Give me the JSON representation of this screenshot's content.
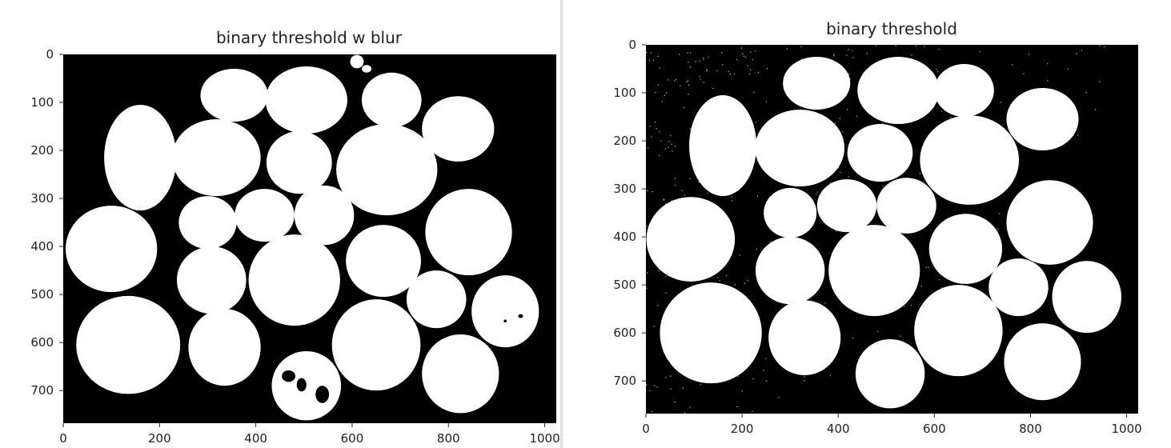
{
  "window": {
    "divider": true
  },
  "chart_data": [
    {
      "type": "image",
      "title": "binary threshold w blur",
      "xlim": [
        0,
        1024
      ],
      "ylim": [
        768,
        0
      ],
      "xticks": [
        0,
        200,
        400,
        600,
        800,
        1000
      ],
      "yticks": [
        0,
        100,
        200,
        300,
        400,
        500,
        600,
        700
      ],
      "colors": {
        "background": "#000000",
        "foreground": "#ffffff"
      },
      "blobs": [
        {
          "cx": 355,
          "cy": 85,
          "rx": 70,
          "ry": 55
        },
        {
          "cx": 505,
          "cy": 95,
          "rx": 85,
          "ry": 70
        },
        {
          "cx": 682,
          "cy": 95,
          "rx": 62,
          "ry": 57
        },
        {
          "cx": 820,
          "cy": 155,
          "rx": 75,
          "ry": 68
        },
        {
          "cx": 160,
          "cy": 215,
          "rx": 75,
          "ry": 110
        },
        {
          "cx": 318,
          "cy": 215,
          "rx": 92,
          "ry": 80
        },
        {
          "cx": 490,
          "cy": 225,
          "rx": 68,
          "ry": 65
        },
        {
          "cx": 672,
          "cy": 240,
          "rx": 105,
          "ry": 95
        },
        {
          "cx": 300,
          "cy": 350,
          "rx": 60,
          "ry": 55
        },
        {
          "cx": 418,
          "cy": 335,
          "rx": 62,
          "ry": 55
        },
        {
          "cx": 542,
          "cy": 335,
          "rx": 62,
          "ry": 62
        },
        {
          "cx": 842,
          "cy": 370,
          "rx": 90,
          "ry": 90
        },
        {
          "cx": 100,
          "cy": 405,
          "rx": 95,
          "ry": 90
        },
        {
          "cx": 308,
          "cy": 470,
          "rx": 72,
          "ry": 70
        },
        {
          "cx": 480,
          "cy": 470,
          "rx": 95,
          "ry": 95
        },
        {
          "cx": 665,
          "cy": 430,
          "rx": 78,
          "ry": 75
        },
        {
          "cx": 775,
          "cy": 510,
          "rx": 62,
          "ry": 60
        },
        {
          "cx": 918,
          "cy": 535,
          "rx": 70,
          "ry": 75
        },
        {
          "cx": 135,
          "cy": 605,
          "rx": 108,
          "ry": 102
        },
        {
          "cx": 335,
          "cy": 610,
          "rx": 75,
          "ry": 80
        },
        {
          "cx": 650,
          "cy": 605,
          "rx": 92,
          "ry": 95
        },
        {
          "cx": 825,
          "cy": 665,
          "rx": 80,
          "ry": 82
        },
        {
          "cx": 505,
          "cy": 690,
          "rx": 72,
          "ry": 72
        }
      ],
      "holes": [
        {
          "cx": 468,
          "cy": 670,
          "rx": 14,
          "ry": 12
        },
        {
          "cx": 495,
          "cy": 688,
          "rx": 10,
          "ry": 14
        },
        {
          "cx": 538,
          "cy": 708,
          "rx": 14,
          "ry": 18
        },
        {
          "cx": 950,
          "cy": 545,
          "rx": 5,
          "ry": 4
        },
        {
          "cx": 918,
          "cy": 555,
          "rx": 3,
          "ry": 3
        }
      ],
      "specks": [
        {
          "cx": 610,
          "cy": 15,
          "rx": 14,
          "ry": 14
        },
        {
          "cx": 630,
          "cy": 30,
          "rx": 10,
          "ry": 8
        }
      ]
    },
    {
      "type": "image",
      "title": "binary threshold",
      "xlim": [
        0,
        1024
      ],
      "ylim": [
        768,
        0
      ],
      "xticks": [
        0,
        200,
        400,
        600,
        800,
        1000
      ],
      "yticks": [
        0,
        100,
        200,
        300,
        400,
        500,
        600,
        700
      ],
      "colors": {
        "background": "#000000",
        "foreground": "#ffffff"
      },
      "blobs": [
        {
          "cx": 355,
          "cy": 80,
          "rx": 70,
          "ry": 55
        },
        {
          "cx": 525,
          "cy": 95,
          "rx": 85,
          "ry": 70
        },
        {
          "cx": 662,
          "cy": 95,
          "rx": 62,
          "ry": 55
        },
        {
          "cx": 825,
          "cy": 155,
          "rx": 75,
          "ry": 65
        },
        {
          "cx": 160,
          "cy": 210,
          "rx": 70,
          "ry": 105
        },
        {
          "cx": 320,
          "cy": 215,
          "rx": 93,
          "ry": 80
        },
        {
          "cx": 487,
          "cy": 225,
          "rx": 68,
          "ry": 60
        },
        {
          "cx": 673,
          "cy": 240,
          "rx": 103,
          "ry": 93
        },
        {
          "cx": 300,
          "cy": 350,
          "rx": 55,
          "ry": 52
        },
        {
          "cx": 418,
          "cy": 335,
          "rx": 62,
          "ry": 55
        },
        {
          "cx": 542,
          "cy": 335,
          "rx": 62,
          "ry": 58
        },
        {
          "cx": 840,
          "cy": 370,
          "rx": 90,
          "ry": 88
        },
        {
          "cx": 93,
          "cy": 405,
          "rx": 92,
          "ry": 88
        },
        {
          "cx": 300,
          "cy": 470,
          "rx": 72,
          "ry": 70
        },
        {
          "cx": 475,
          "cy": 470,
          "rx": 95,
          "ry": 95
        },
        {
          "cx": 665,
          "cy": 425,
          "rx": 76,
          "ry": 73
        },
        {
          "cx": 775,
          "cy": 505,
          "rx": 62,
          "ry": 60
        },
        {
          "cx": 917,
          "cy": 525,
          "rx": 72,
          "ry": 75
        },
        {
          "cx": 135,
          "cy": 600,
          "rx": 106,
          "ry": 105
        },
        {
          "cx": 330,
          "cy": 610,
          "rx": 75,
          "ry": 78
        },
        {
          "cx": 650,
          "cy": 595,
          "rx": 92,
          "ry": 95
        },
        {
          "cx": 825,
          "cy": 660,
          "rx": 80,
          "ry": 80
        },
        {
          "cx": 508,
          "cy": 685,
          "rx": 72,
          "ry": 72
        }
      ]
    }
  ]
}
